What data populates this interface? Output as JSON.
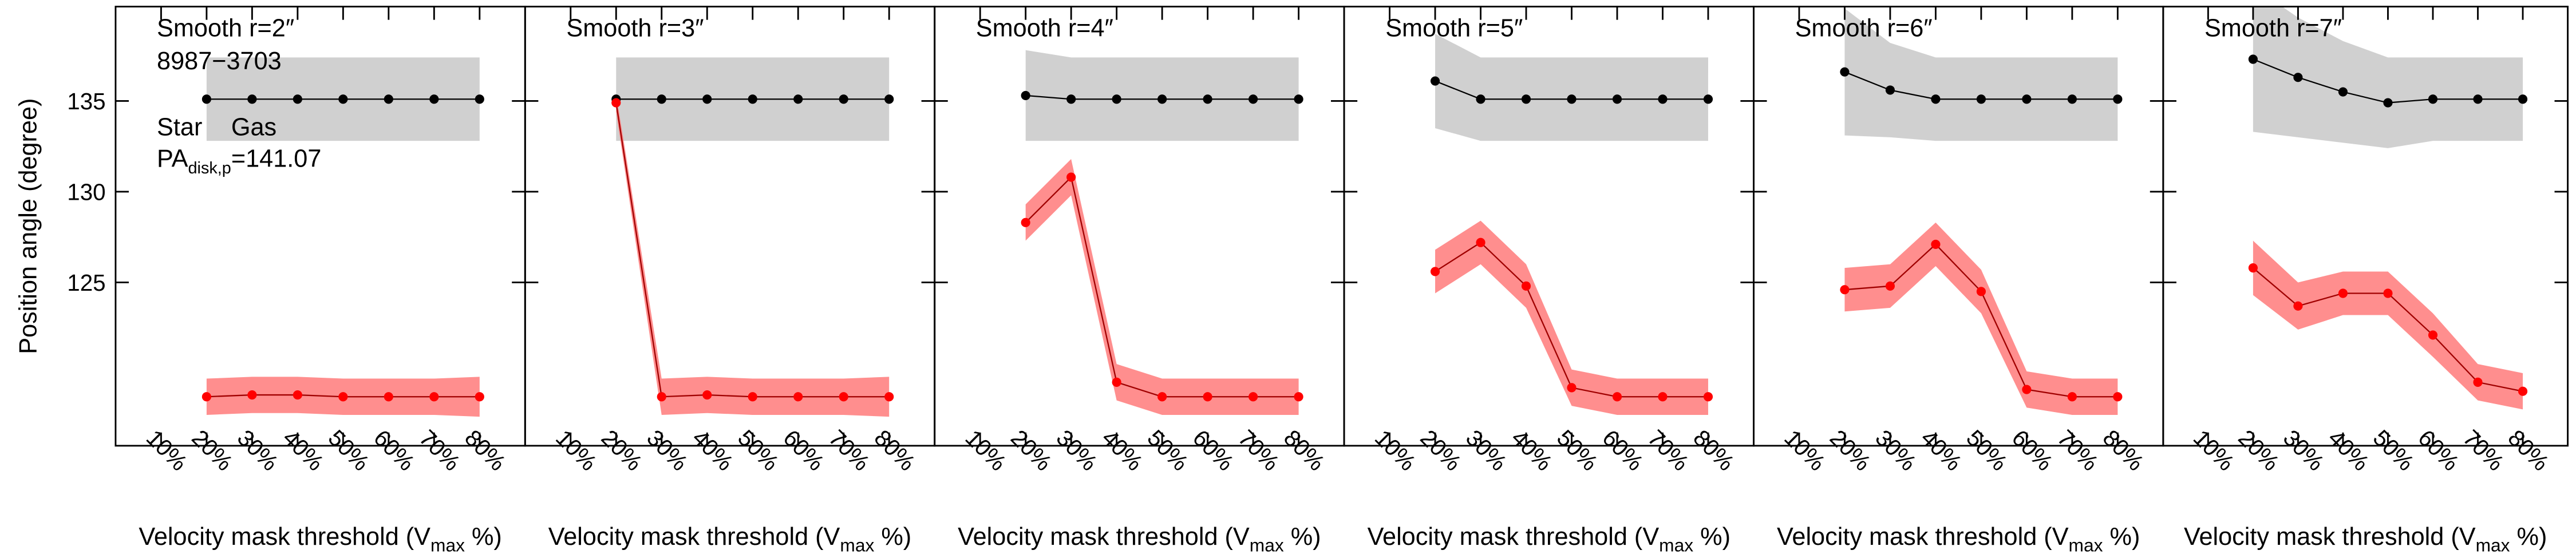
{
  "chart_data": [
    {
      "type": "line",
      "title": "Smooth r=2″",
      "annotations": [
        "8987−3703"
      ],
      "pa_label": {
        "main": "PA",
        "sub": "disk,p",
        "value": "=141.07"
      },
      "ylabel": "Position angle (degree)",
      "xlabel": {
        "main": "Velocity mask threshold (V",
        "sub": "max",
        "end": " %)"
      },
      "x": [
        20,
        30,
        40,
        50,
        60,
        70,
        80
      ],
      "xlim": [
        0,
        90
      ],
      "xticks": [
        {
          "value": 10,
          "label": "10%"
        },
        {
          "value": 20,
          "label": "20%"
        },
        {
          "value": 30,
          "label": "30%"
        },
        {
          "value": 40,
          "label": "40%"
        },
        {
          "value": 50,
          "label": "50%"
        },
        {
          "value": 60,
          "label": "60%"
        },
        {
          "value": 70,
          "label": "70%"
        },
        {
          "value": 80,
          "label": "80%"
        }
      ],
      "ylim": [
        116,
        140.2
      ],
      "yticks": [
        125,
        130,
        135
      ],
      "series": [
        {
          "name": "Star",
          "color": "#000000",
          "band_color": "#c8c8c8",
          "values": [
            135.1,
            135.1,
            135.1,
            135.1,
            135.1,
            135.1,
            135.1
          ],
          "errors": [
            2.3,
            2.3,
            2.3,
            2.3,
            2.3,
            2.3,
            2.3
          ]
        },
        {
          "name": "Gas",
          "color": "#ff0000",
          "band_color": "#ff7a7a",
          "values": [
            118.7,
            118.8,
            118.8,
            118.7,
            118.7,
            118.7,
            118.7
          ],
          "errors": [
            1.0,
            1.0,
            1.0,
            1.0,
            1.0,
            1.0,
            1.1
          ]
        }
      ]
    },
    {
      "type": "line",
      "title": "Smooth r=3″",
      "xlabel": {
        "main": "Velocity mask threshold (V",
        "sub": "max",
        "end": " %)"
      },
      "x": [
        20,
        30,
        40,
        50,
        60,
        70,
        80
      ],
      "xlim": [
        0,
        90
      ],
      "xticks": [
        {
          "value": 10,
          "label": "10%"
        },
        {
          "value": 20,
          "label": "20%"
        },
        {
          "value": 30,
          "label": "30%"
        },
        {
          "value": 40,
          "label": "40%"
        },
        {
          "value": 50,
          "label": "50%"
        },
        {
          "value": 60,
          "label": "60%"
        },
        {
          "value": 70,
          "label": "70%"
        },
        {
          "value": 80,
          "label": "80%"
        }
      ],
      "ylim": [
        116,
        140.2
      ],
      "yticks": [
        125,
        130,
        135
      ],
      "series": [
        {
          "color": "#000000",
          "band_color": "#c8c8c8",
          "values": [
            135.1,
            135.1,
            135.1,
            135.1,
            135.1,
            135.1,
            135.1
          ],
          "errors": [
            2.3,
            2.3,
            2.3,
            2.3,
            2.3,
            2.3,
            2.3
          ]
        },
        {
          "color": "#ff0000",
          "band_color": "#ff7a7a",
          "values": [
            134.9,
            118.7,
            118.8,
            118.7,
            118.7,
            118.7,
            118.7
          ],
          "errors": [
            0.5,
            1.0,
            1.0,
            1.0,
            1.0,
            1.0,
            1.1
          ]
        }
      ]
    },
    {
      "type": "line",
      "title": "Smooth r=4″",
      "xlabel": {
        "main": "Velocity mask threshold (V",
        "sub": "max",
        "end": " %)"
      },
      "x": [
        20,
        30,
        40,
        50,
        60,
        70,
        80
      ],
      "xlim": [
        0,
        90
      ],
      "xticks": [
        {
          "value": 10,
          "label": "10%"
        },
        {
          "value": 20,
          "label": "20%"
        },
        {
          "value": 30,
          "label": "30%"
        },
        {
          "value": 40,
          "label": "40%"
        },
        {
          "value": 50,
          "label": "50%"
        },
        {
          "value": 60,
          "label": "60%"
        },
        {
          "value": 70,
          "label": "70%"
        },
        {
          "value": 80,
          "label": "80%"
        }
      ],
      "ylim": [
        116,
        140.2
      ],
      "yticks": [
        125,
        130,
        135
      ],
      "series": [
        {
          "color": "#000000",
          "band_color": "#c8c8c8",
          "values": [
            135.3,
            135.1,
            135.1,
            135.1,
            135.1,
            135.1,
            135.1
          ],
          "errors": [
            2.5,
            2.3,
            2.3,
            2.3,
            2.3,
            2.3,
            2.3
          ]
        },
        {
          "color": "#ff0000",
          "band_color": "#ff7a7a",
          "values": [
            128.3,
            130.8,
            119.5,
            118.7,
            118.7,
            118.7,
            118.7
          ],
          "errors": [
            1.0,
            1.0,
            1.0,
            1.0,
            1.0,
            1.0,
            1.0
          ]
        }
      ]
    },
    {
      "type": "line",
      "title": "Smooth r=5″",
      "xlabel": {
        "main": "Velocity mask threshold (V",
        "sub": "max",
        "end": " %)"
      },
      "x": [
        20,
        30,
        40,
        50,
        60,
        70,
        80
      ],
      "xlim": [
        0,
        90
      ],
      "xticks": [
        {
          "value": 10,
          "label": "10%"
        },
        {
          "value": 20,
          "label": "20%"
        },
        {
          "value": 30,
          "label": "30%"
        },
        {
          "value": 40,
          "label": "40%"
        },
        {
          "value": 50,
          "label": "50%"
        },
        {
          "value": 60,
          "label": "60%"
        },
        {
          "value": 70,
          "label": "70%"
        },
        {
          "value": 80,
          "label": "80%"
        }
      ],
      "ylim": [
        116,
        140.2
      ],
      "yticks": [
        125,
        130,
        135
      ],
      "series": [
        {
          "color": "#000000",
          "band_color": "#c8c8c8",
          "values": [
            136.1,
            135.1,
            135.1,
            135.1,
            135.1,
            135.1,
            135.1
          ],
          "errors": [
            2.6,
            2.3,
            2.3,
            2.3,
            2.3,
            2.3,
            2.3
          ]
        },
        {
          "color": "#ff0000",
          "band_color": "#ff7a7a",
          "values": [
            125.6,
            127.2,
            124.8,
            119.2,
            118.7,
            118.7,
            118.7
          ],
          "errors": [
            1.2,
            1.2,
            1.2,
            1.0,
            1.0,
            1.0,
            1.0
          ]
        }
      ]
    },
    {
      "type": "line",
      "title": "Smooth r=6″",
      "xlabel": {
        "main": "Velocity mask threshold (V",
        "sub": "max",
        "end": " %)"
      },
      "x": [
        20,
        30,
        40,
        50,
        60,
        70,
        80
      ],
      "xlim": [
        0,
        90
      ],
      "xticks": [
        {
          "value": 10,
          "label": "10%"
        },
        {
          "value": 20,
          "label": "20%"
        },
        {
          "value": 30,
          "label": "30%"
        },
        {
          "value": 40,
          "label": "40%"
        },
        {
          "value": 50,
          "label": "50%"
        },
        {
          "value": 60,
          "label": "60%"
        },
        {
          "value": 70,
          "label": "70%"
        },
        {
          "value": 80,
          "label": "80%"
        }
      ],
      "ylim": [
        116,
        140.2
      ],
      "yticks": [
        125,
        130,
        135
      ],
      "series": [
        {
          "color": "#000000",
          "band_color": "#c8c8c8",
          "values": [
            136.6,
            135.6,
            135.1,
            135.1,
            135.1,
            135.1,
            135.1
          ],
          "errors": [
            3.5,
            2.6,
            2.3,
            2.3,
            2.3,
            2.3,
            2.3
          ]
        },
        {
          "color": "#ff0000",
          "band_color": "#ff7a7a",
          "values": [
            124.6,
            124.8,
            127.1,
            124.5,
            119.1,
            118.7,
            118.7
          ],
          "errors": [
            1.2,
            1.2,
            1.2,
            1.2,
            1.0,
            1.0,
            1.0
          ]
        }
      ]
    },
    {
      "type": "line",
      "title": "Smooth r=7″",
      "xlabel": {
        "main": "Velocity mask threshold (V",
        "sub": "max",
        "end": " %)"
      },
      "x": [
        20,
        30,
        40,
        50,
        60,
        70,
        80
      ],
      "xlim": [
        0,
        90
      ],
      "xticks": [
        {
          "value": 10,
          "label": "10%"
        },
        {
          "value": 20,
          "label": "20%"
        },
        {
          "value": 30,
          "label": "30%"
        },
        {
          "value": 40,
          "label": "40%"
        },
        {
          "value": 50,
          "label": "50%"
        },
        {
          "value": 60,
          "label": "60%"
        },
        {
          "value": 70,
          "label": "70%"
        },
        {
          "value": 80,
          "label": "80%"
        }
      ],
      "ylim": [
        116,
        140.2
      ],
      "yticks": [
        125,
        130,
        135
      ],
      "series": [
        {
          "color": "#000000",
          "band_color": "#c8c8c8",
          "values": [
            137.3,
            136.3,
            135.5,
            134.9,
            135.1,
            135.1,
            135.1
          ],
          "errors": [
            4.0,
            3.3,
            2.8,
            2.5,
            2.3,
            2.3,
            2.3
          ]
        },
        {
          "color": "#ff0000",
          "band_color": "#ff7a7a",
          "values": [
            125.8,
            123.7,
            124.4,
            124.4,
            122.1,
            119.5,
            119.0
          ],
          "errors": [
            1.5,
            1.3,
            1.2,
            1.2,
            1.2,
            1.0,
            1.0
          ]
        }
      ]
    }
  ]
}
